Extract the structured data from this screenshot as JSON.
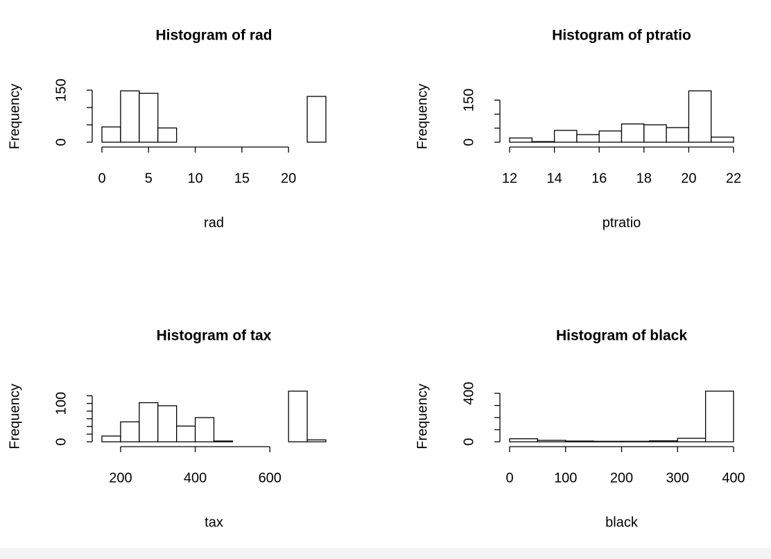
{
  "chart_data": [
    {
      "type": "histogram",
      "title": "Histogram of rad",
      "x_label": "rad",
      "y_label": "Frequency",
      "bins": [
        0,
        2,
        4,
        6,
        8,
        10,
        12,
        14,
        16,
        18,
        20,
        22,
        24
      ],
      "values": [
        44,
        148,
        141,
        41,
        0,
        0,
        0,
        0,
        0,
        0,
        0,
        132
      ],
      "xlim": [
        0,
        24
      ],
      "xticks": [
        0,
        5,
        10,
        15,
        20
      ],
      "ylim": [
        0,
        148
      ],
      "yticks": [
        0,
        {
          "value": 50,
          "label": null
        },
        {
          "value": 100,
          "label": null
        },
        150
      ]
    },
    {
      "type": "histogram",
      "title": "Histogram of ptratio",
      "x_label": "ptratio",
      "y_label": "Frequency",
      "bins": [
        12,
        13,
        14,
        15,
        16,
        17,
        18,
        19,
        20,
        21,
        22
      ],
      "values": [
        15,
        2,
        42,
        27,
        40,
        65,
        62,
        52,
        183,
        18
      ],
      "xlim": [
        12,
        22
      ],
      "xticks": [
        12,
        14,
        16,
        18,
        20,
        22
      ],
      "ylim": [
        0,
        183
      ],
      "yticks": [
        0,
        {
          "value": 50,
          "label": null
        },
        {
          "value": 100,
          "label": null
        },
        150
      ]
    },
    {
      "type": "histogram",
      "title": "Histogram of tax",
      "x_label": "tax",
      "y_label": "Frequency",
      "bins": [
        150,
        200,
        250,
        300,
        350,
        400,
        450,
        500,
        550,
        600,
        650,
        700,
        750
      ],
      "values": [
        15,
        52,
        102,
        94,
        41,
        63,
        2,
        0,
        0,
        0,
        132,
        5
      ],
      "xlim": [
        150,
        750
      ],
      "xticks": [
        200,
        400,
        600
      ],
      "ylim": [
        0,
        132
      ],
      "yticks": [
        0,
        {
          "value": 20,
          "label": null
        },
        {
          "value": 40,
          "label": null
        },
        {
          "value": 60,
          "label": null
        },
        {
          "value": 80,
          "label": null
        },
        100,
        {
          "value": 120,
          "label": null
        }
      ]
    },
    {
      "type": "histogram",
      "title": "Histogram of black",
      "x_label": "black",
      "y_label": "Frequency",
      "bins": [
        0,
        50,
        100,
        150,
        200,
        250,
        300,
        350,
        400
      ],
      "values": [
        25,
        12,
        6,
        4,
        4,
        8,
        29,
        418
      ],
      "xlim": [
        0,
        400
      ],
      "xticks": [
        0,
        100,
        200,
        300,
        400
      ],
      "ylim": [
        0,
        418
      ],
      "yticks": [
        0,
        {
          "value": 100,
          "label": null
        },
        {
          "value": 200,
          "label": null
        },
        {
          "value": 300,
          "label": null
        },
        400
      ]
    }
  ]
}
